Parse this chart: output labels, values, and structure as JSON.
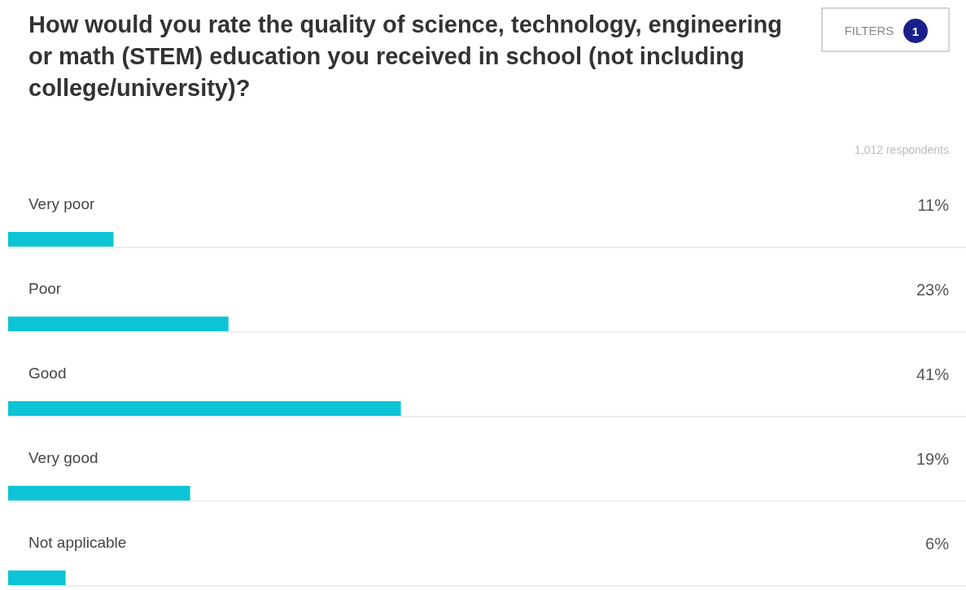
{
  "chart_data": {
    "type": "bar",
    "orientation": "horizontal",
    "title": "How would you rate the quality of science, technology, engineering or math (STEM) education you received in school (not including college/university)?",
    "subtitle": "1,012 respondents",
    "annotations": [
      "FILTERS",
      "1"
    ],
    "categories": [
      "Very poor",
      "Poor",
      "Good",
      "Very good",
      "Not applicable"
    ],
    "values": [
      11,
      23,
      41,
      19,
      6
    ],
    "value_labels": [
      "11%",
      "23%",
      "41%",
      "19%",
      "6%"
    ],
    "color": "#0cc4d6",
    "xlim": [
      0,
      100
    ],
    "tick_labels": false
  }
}
